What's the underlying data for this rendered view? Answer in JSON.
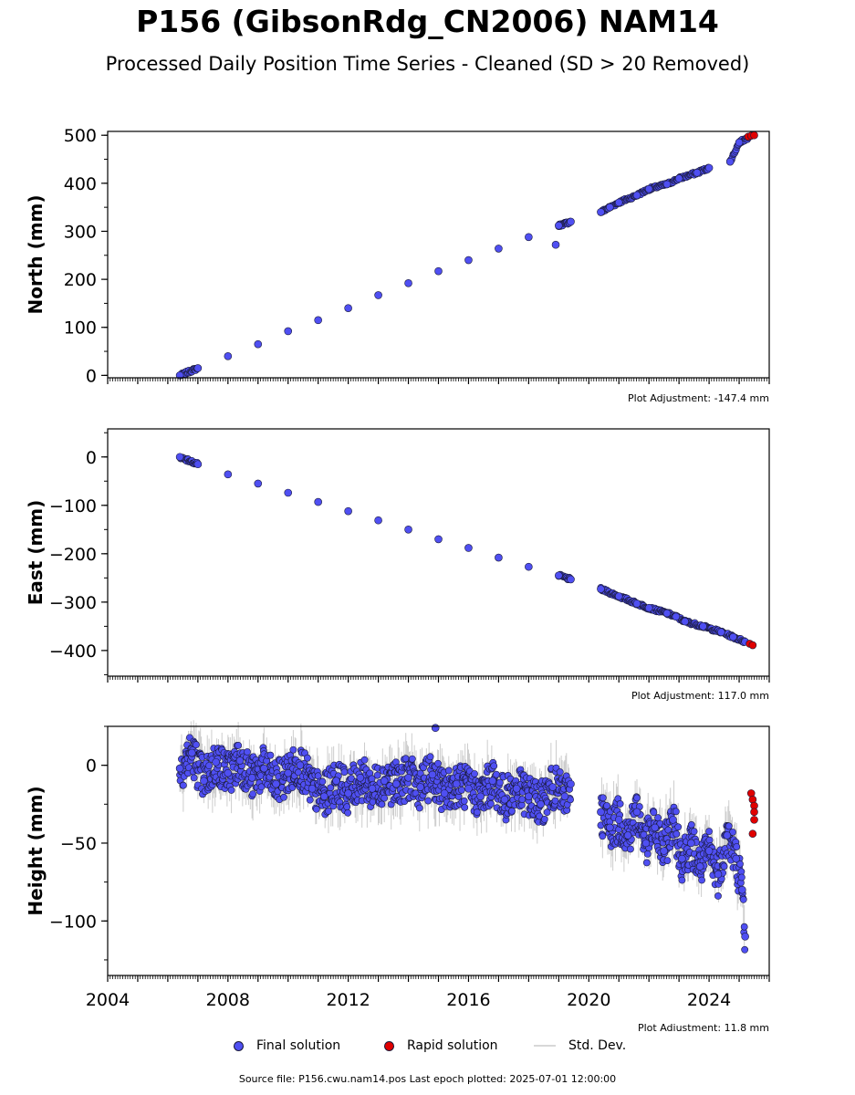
{
  "title": "P156 (GibsonRdg_CN2006) NAM14",
  "subtitle": "Processed Daily Position Time Series - Cleaned (SD > 20 Removed)",
  "source_text": "Source file: P156.cwu.nam14.pos  Last epoch plotted: 2025-07-01 12:00:00",
  "legend": {
    "final_label": "Final solution",
    "rapid_label": "Rapid solution",
    "std_label": "Std. Dev."
  },
  "colors": {
    "final": "#4f4ff2",
    "rapid": "#e00000",
    "edge": "#1a1a3a",
    "std": "#b8b8b8"
  },
  "chart_data": [
    {
      "type": "scatter",
      "ylabel": "North (mm)",
      "adjustment": "Plot Adjustment: -147.4 mm",
      "xlim": [
        2004.0,
        2026.0
      ],
      "ylim": [
        -5,
        508
      ],
      "yticks": [
        0,
        100,
        200,
        300,
        400,
        500
      ],
      "ytick_labels": [
        "0",
        "100",
        "200",
        "300",
        "400",
        "500"
      ],
      "series": [
        {
          "name": "Final solution",
          "kind": "final",
          "x": [
            2006.4,
            2007.0,
            2008.0,
            2009.0,
            2010.0,
            2011.0,
            2012.0,
            2013.0,
            2014.0,
            2015.0,
            2016.0,
            2017.0,
            2018.0,
            2019.0,
            2019.4,
            2018.9,
            2020.4,
            2020.7,
            2021.0,
            2021.6,
            2022.0,
            2022.6,
            2023.0,
            2023.6,
            2024.0,
            2024.7,
            2025.0,
            2025.3
          ],
          "y": [
            0,
            15,
            40,
            65,
            92,
            115,
            140,
            167,
            192,
            217,
            240,
            264,
            288,
            312,
            320,
            272,
            340,
            350,
            360,
            375,
            388,
            398,
            410,
            422,
            432,
            445,
            485,
            495
          ]
        },
        {
          "name": "Rapid solution",
          "kind": "rapid",
          "x": [
            2025.3,
            2025.4,
            2025.5
          ],
          "y": [
            497,
            499,
            500
          ]
        }
      ]
    },
    {
      "type": "scatter",
      "ylabel": "East (mm)",
      "adjustment": "Plot Adjustment: 117.0 mm",
      "xlim": [
        2004.0,
        2026.0
      ],
      "ylim": [
        -453,
        58
      ],
      "yticks": [
        0,
        -100,
        -200,
        -300,
        -400
      ],
      "ytick_labels": [
        "0",
        "−100",
        "−200",
        "−300",
        "−400"
      ],
      "series": [
        {
          "name": "Final solution",
          "kind": "final",
          "x": [
            2006.4,
            2007.0,
            2008.0,
            2009.0,
            2010.0,
            2011.0,
            2012.0,
            2013.0,
            2014.0,
            2015.0,
            2016.0,
            2017.0,
            2018.0,
            2019.0,
            2019.4,
            2020.4,
            2021.0,
            2021.6,
            2022.0,
            2022.6,
            2022.9,
            2023.2,
            2023.8,
            2024.4,
            2024.8,
            2025.2
          ],
          "y": [
            0,
            -15,
            -36,
            -55,
            -74,
            -93,
            -112,
            -131,
            -150,
            -170,
            -188,
            -208,
            -227,
            -245,
            -253,
            -273,
            -288,
            -303,
            -312,
            -323,
            -330,
            -340,
            -350,
            -362,
            -372,
            -382
          ]
        },
        {
          "name": "Rapid solution",
          "kind": "rapid",
          "x": [
            2025.35,
            2025.45
          ],
          "y": [
            -386,
            -389
          ]
        }
      ]
    },
    {
      "type": "scatter",
      "ylabel": "Height (mm)",
      "adjustment": "Plot Adjustment: 11.8 mm",
      "xlim": [
        2004.0,
        2026.0
      ],
      "ylim": [
        -135,
        25
      ],
      "yticks": [
        0,
        -50,
        -100
      ],
      "ytick_labels": [
        "0",
        "−50",
        "−100"
      ],
      "xticks": [
        2004,
        2008,
        2012,
        2016,
        2020,
        2024
      ],
      "xtick_labels": [
        "2004",
        "2008",
        "2012",
        "2016",
        "2020",
        "2024"
      ],
      "series": [
        {
          "name": "Final solution",
          "kind": "final",
          "x": [
            2006.4,
            2006.8,
            2007.2,
            2007.6,
            2008.0,
            2008.4,
            2008.8,
            2009.2,
            2009.6,
            2010.0,
            2010.4,
            2010.8,
            2011.2,
            2011.6,
            2012.0,
            2012.4,
            2012.8,
            2013.2,
            2013.6,
            2014.0,
            2014.4,
            2014.8,
            2015.2,
            2015.6,
            2016.0,
            2016.4,
            2016.8,
            2017.2,
            2017.6,
            2018.0,
            2018.4,
            2018.8,
            2019.2,
            2019.4,
            2020.4,
            2020.7,
            2021.0,
            2021.3,
            2021.6,
            2021.9,
            2022.2,
            2022.5,
            2022.8,
            2023.1,
            2023.4,
            2023.7,
            2024.0,
            2024.3,
            2024.6,
            2024.9,
            2025.1,
            2025.2,
            2014.9
          ],
          "y": [
            -2,
            8,
            -10,
            2,
            -5,
            3,
            -8,
            -2,
            -12,
            -5,
            0,
            -15,
            -20,
            -10,
            -18,
            -8,
            -15,
            -10,
            -12,
            -8,
            -14,
            -6,
            -18,
            -12,
            -15,
            -20,
            -10,
            -22,
            -15,
            -20,
            -25,
            -14,
            -20,
            -12,
            -30,
            -40,
            -35,
            -45,
            -30,
            -50,
            -40,
            -55,
            -35,
            -60,
            -50,
            -65,
            -55,
            -70,
            -45,
            -60,
            -80,
            -110,
            24
          ]
        },
        {
          "name": "Rapid solution",
          "kind": "rapid",
          "x": [
            2025.4,
            2025.45,
            2025.5,
            2025.5,
            2025.5,
            2025.45
          ],
          "y": [
            -18,
            -22,
            -26,
            -30,
            -35,
            -44
          ]
        }
      ]
    }
  ]
}
